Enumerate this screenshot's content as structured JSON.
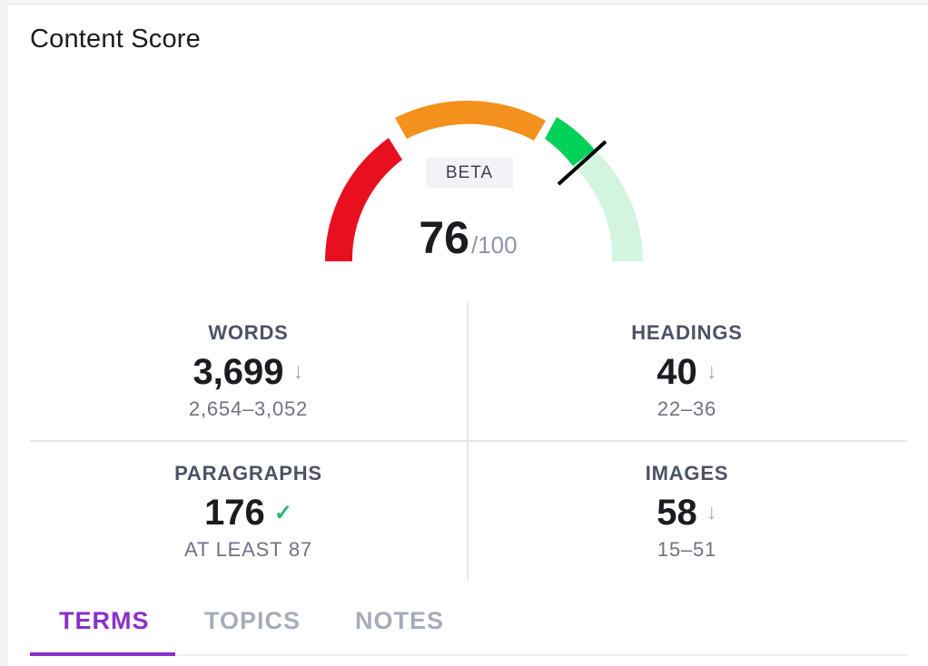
{
  "panel": {
    "title": "Content Score"
  },
  "gauge": {
    "badge": "BETA",
    "score": "76",
    "max": "/100",
    "score_value": 76,
    "colors": {
      "red": "#e8101f",
      "orange": "#f4901c",
      "green": "#00d158",
      "light_green": "#d3f4df",
      "needle": "#000000"
    }
  },
  "stats": [
    {
      "label": "WORDS",
      "value": "3,699",
      "icon": "arrow-down-icon",
      "range": "2,654–3,052"
    },
    {
      "label": "HEADINGS",
      "value": "40",
      "icon": "arrow-down-icon",
      "range": "22–36"
    },
    {
      "label": "PARAGRAPHS",
      "value": "176",
      "icon": "check-icon",
      "range": "AT LEAST 87"
    },
    {
      "label": "IMAGES",
      "value": "58",
      "icon": "arrow-down-icon",
      "range": "15–51"
    }
  ],
  "tabs": [
    {
      "label": "TERMS",
      "active": true
    },
    {
      "label": "TOPICS",
      "active": false
    },
    {
      "label": "NOTES",
      "active": false
    }
  ],
  "accent_color": "#8b2fc9"
}
